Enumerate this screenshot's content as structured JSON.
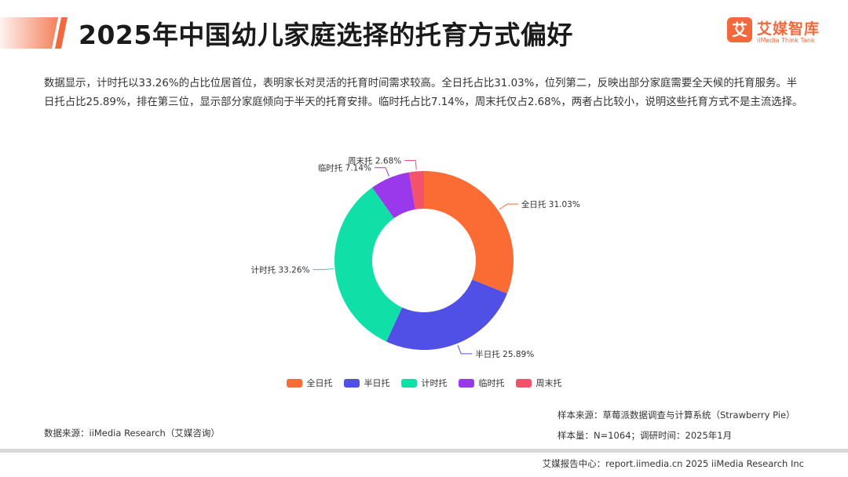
{
  "header": {
    "title": "2025年中国幼儿家庭选择的托育方式偏好",
    "accent_color": "#f2693d"
  },
  "logo": {
    "mark": "艾",
    "name_cn": "艾媒智库",
    "name_en": "iiMedia Think Tank",
    "icon": "iimedia-logo-icon"
  },
  "summary": "数据显示，计时托以33.26%的占比位居首位，表明家长对灵活的托育时间需求较高。全日托占比31.03%，位列第二，反映出部分家庭需要全天候的托育服务。半日托占比25.89%，排在第三位，显示部分家庭倾向于半天的托育安排。临时托占比7.14%，周末托仅占2.68%，两者占比较小，说明这些托育方式不是主流选择。",
  "chart_data": {
    "type": "pie",
    "donut": true,
    "title": "",
    "unit": "%",
    "start_angle_deg": 0,
    "direction": "clockwise",
    "legend_position": "bottom",
    "slices": [
      {
        "name": "全日托",
        "value": 31.03,
        "label": "全日托 31.03%",
        "color": "#fb6b34"
      },
      {
        "name": "半日托",
        "value": 25.89,
        "label": "半日托 25.89%",
        "color": "#5050e6"
      },
      {
        "name": "计时托",
        "value": 33.26,
        "label": "计时托 33.26%",
        "color": "#10e0a8"
      },
      {
        "name": "临时托",
        "value": 7.14,
        "label": "临时托 7.14%",
        "color": "#9a38ec"
      },
      {
        "name": "周末托",
        "value": 2.68,
        "label": "周末托 2.68%",
        "color": "#f4516b"
      }
    ]
  },
  "sources": {
    "data_source": "数据来源：iiMedia Research（艾媒咨询）",
    "sample_source": "样本来源：草莓派数据调查与计算系统（Strawberry Pie）",
    "sample_size": "样本量：N=1064；调研时间：2025年1月"
  },
  "footer": {
    "text": "艾媒报告中心：report.iimedia.cn  2025 iiMedia Research Inc"
  }
}
